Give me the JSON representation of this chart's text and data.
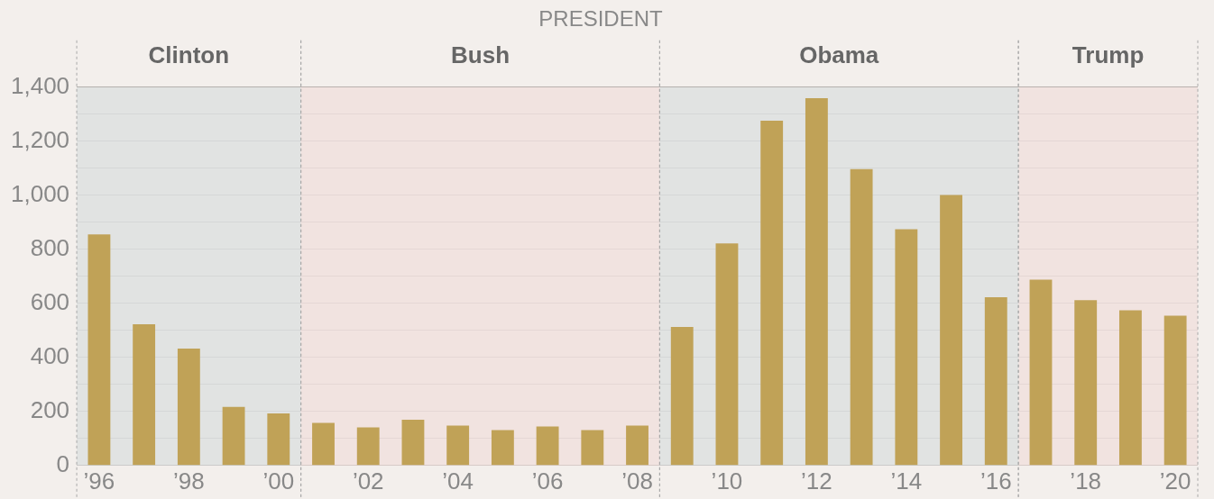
{
  "chart_data": {
    "type": "bar",
    "title": "PRESIDENT",
    "x": [
      1996,
      1997,
      1998,
      1999,
      2000,
      2001,
      2002,
      2003,
      2004,
      2005,
      2006,
      2007,
      2008,
      2009,
      2010,
      2011,
      2012,
      2013,
      2014,
      2015,
      2016,
      2017,
      2018,
      2019,
      2020
    ],
    "values": [
      855,
      523,
      433,
      217,
      193,
      158,
      141,
      169,
      148,
      131,
      144,
      131,
      148,
      513,
      822,
      1276,
      1359,
      1097,
      874,
      1001,
      623,
      688,
      612,
      574,
      554
    ],
    "color": "#c0a257",
    "xlim": [
      1995.5,
      2020.5
    ],
    "xticks": [
      {
        "value": 1996,
        "label": "’96"
      },
      {
        "value": 1998,
        "label": "’98"
      },
      {
        "value": 2000,
        "label": "’00"
      },
      {
        "value": 2002,
        "label": "’02"
      },
      {
        "value": 2004,
        "label": "’04"
      },
      {
        "value": 2006,
        "label": "’06"
      },
      {
        "value": 2008,
        "label": "’08"
      },
      {
        "value": 2010,
        "label": "’10"
      },
      {
        "value": 2012,
        "label": "’12"
      },
      {
        "value": 2014,
        "label": "’14"
      },
      {
        "value": 2016,
        "label": "’16"
      },
      {
        "value": 2018,
        "label": "’18"
      },
      {
        "value": 2020,
        "label": "’20"
      }
    ],
    "ylim": [
      0,
      1400
    ],
    "yticks": [
      0,
      {
        "value": 100,
        "label": null
      },
      200,
      {
        "value": 300,
        "label": null
      },
      400,
      {
        "value": 500,
        "label": null
      },
      600,
      {
        "value": 700,
        "label": null
      },
      800,
      {
        "value": 900,
        "label": null
      },
      {
        "value": 1000,
        "label": "1,000"
      },
      {
        "value": 1100,
        "label": null
      },
      {
        "value": 1200,
        "label": "1,200"
      },
      {
        "value": 1300,
        "label": null
      },
      {
        "value": 1400,
        "label": "1,400"
      }
    ],
    "bands": [
      {
        "axis": "x",
        "from": 1995.5,
        "to": 2000.5,
        "label": "Clinton",
        "color": "#dde0e0"
      },
      {
        "axis": "x",
        "from": 2000.5,
        "to": 2008.5,
        "label": "Bush",
        "color": "#f0e0de"
      },
      {
        "axis": "x",
        "from": 2008.5,
        "to": 2016.5,
        "label": "Obama",
        "color": "#dde0e0"
      },
      {
        "axis": "x",
        "from": 2016.5,
        "to": 2020.5,
        "label": "Trump",
        "color": "#f0e0de"
      }
    ],
    "grid": "y"
  }
}
